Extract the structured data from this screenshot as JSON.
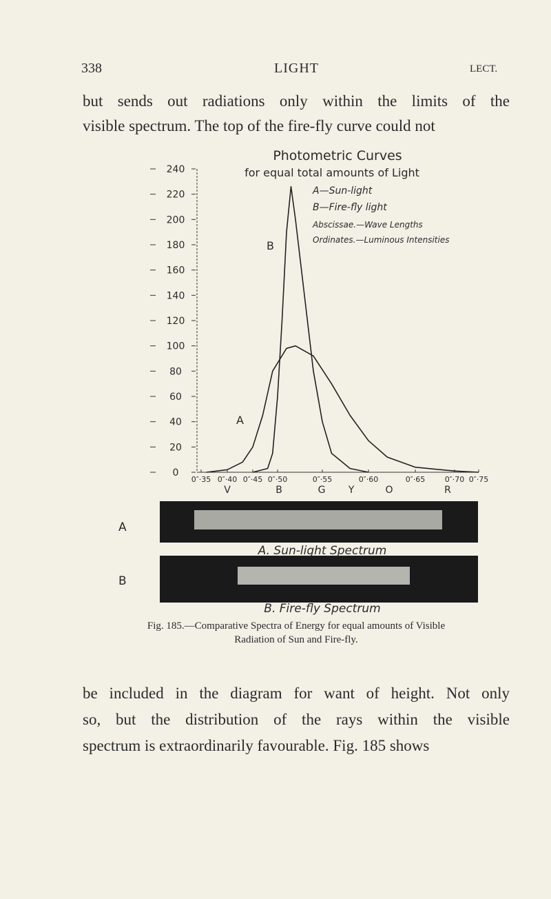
{
  "header": {
    "page_number": "338",
    "title": "LIGHT",
    "section": "LECT."
  },
  "paragraph_1": [
    "but sends out radiations only within the limits of the",
    "visible spectrum. The top of the fire-fly curve could not"
  ],
  "chart_data": {
    "type": "line",
    "title": "Photometric Curves",
    "subtitle": "for equal total amounts of Light",
    "legend_lines": [
      "A—Sun-light",
      "B—Fire-fly light",
      "Abscissae.—Wave Lengths",
      "Ordinates.—Luminous Intensities"
    ],
    "series": [
      {
        "name": "A",
        "color": "#222222",
        "x": [
          0.36,
          0.4,
          0.43,
          0.45,
          0.47,
          0.49,
          0.51,
          0.52,
          0.54,
          0.56,
          0.58,
          0.6,
          0.62,
          0.65,
          0.7,
          0.75
        ],
        "values": [
          0,
          2,
          8,
          20,
          45,
          80,
          98,
          100,
          92,
          70,
          45,
          25,
          12,
          4,
          1,
          0
        ]
      },
      {
        "name": "B",
        "color": "#222222",
        "x": [
          0.45,
          0.48,
          0.49,
          0.5,
          0.505,
          0.51,
          0.515,
          0.52,
          0.53,
          0.54,
          0.55,
          0.56,
          0.58,
          0.6
        ],
        "values": [
          0,
          3,
          15,
          60,
          120,
          190,
          226,
          200,
          140,
          80,
          40,
          15,
          3,
          0
        ]
      }
    ],
    "xlim": [
      0.35,
      0.75
    ],
    "xticks": [
      {
        "value": 0.35,
        "label": "0″·35"
      },
      {
        "value": 0.4,
        "label": "0″·40"
      },
      {
        "value": 0.45,
        "label": "0″·45"
      },
      {
        "value": 0.5,
        "label": "0″·50"
      },
      {
        "value": 0.55,
        "label": "0″·55"
      },
      {
        "value": 0.6,
        "label": "0″·60"
      },
      {
        "value": 0.65,
        "label": "0″·65"
      },
      {
        "value": 0.7,
        "label": "0″·70"
      },
      {
        "value": 0.75,
        "label": "0″·75"
      }
    ],
    "ylim": [
      0,
      240
    ],
    "yticks": [
      0,
      20,
      40,
      60,
      80,
      100,
      120,
      140,
      160,
      180,
      200,
      220,
      240
    ],
    "spectrum_letters": [
      "V",
      "B",
      "G",
      "Y",
      "O",
      "R"
    ],
    "strip_labels": [
      "A",
      "B"
    ],
    "strip_captions": [
      "A. Sun-light Spectrum",
      "B. Fire-fly Spectrum"
    ]
  },
  "caption": [
    "Fig. 185.—Comparative Spectra of Energy for equal amounts of Visible",
    "Radiation of Sun and Fire-fly."
  ],
  "paragraph_2": [
    "be included in the diagram for want of height. Not only",
    "so, but the distribution of the rays within the visible",
    "spectrum is extraordinarily favourable. Fig. 185 shows"
  ]
}
